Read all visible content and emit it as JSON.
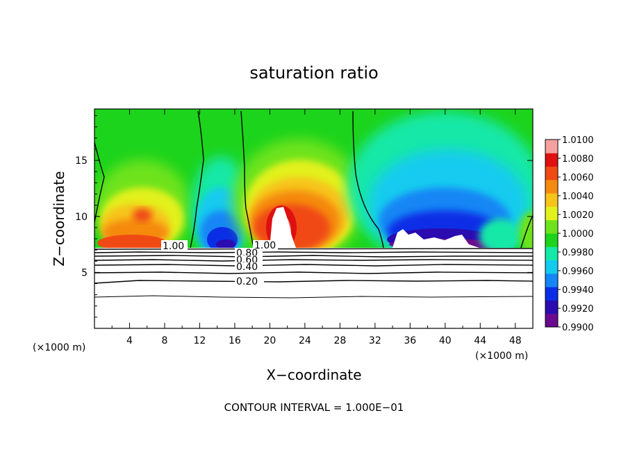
{
  "chart_data": {
    "type": "heatmap",
    "title": "saturation ratio",
    "xlabel": "X−coordinate",
    "ylabel": "Z−coordinate",
    "x_unit_left": "(×1000 m)",
    "x_unit_right": "(×1000 m)",
    "x_ticks": [
      "4",
      "8",
      "12",
      "16",
      "20",
      "24",
      "28",
      "32",
      "36",
      "40",
      "44",
      "48"
    ],
    "y_ticks": [
      "5",
      "10",
      "15"
    ],
    "xlim": [
      0,
      50
    ],
    "ylim": [
      0,
      19.6
    ],
    "colorbar": {
      "labels": [
        "1.0100",
        "1.0080",
        "1.0060",
        "1.0040",
        "1.0020",
        "1.0000",
        "0.9980",
        "0.9960",
        "0.9940",
        "0.9920",
        "0.9900"
      ],
      "range": [
        0.99,
        1.01
      ],
      "colors": [
        "#6a0a8e",
        "#2a0cb0",
        "#0a2ee6",
        "#1586f5",
        "#12cbef",
        "#15e8a8",
        "#1cd41c",
        "#6ee31c",
        "#e2f11c",
        "#f7c41a",
        "#f58a10",
        "#f04a14",
        "#de1010",
        "#f7a0a0"
      ]
    },
    "contour_labels": [
      "1.00",
      "1.00",
      "0.80",
      "0.60",
      "0.40",
      "0.20"
    ],
    "annotation": "CONTOUR INTERVAL = 1.000E−01",
    "cloud_base_z": 7.2,
    "regions": [
      {
        "kind": "moist_max",
        "x": 5,
        "z": 10.2,
        "value": 1.006
      },
      {
        "kind": "dry_min",
        "x": 15.5,
        "z": 9.0,
        "value": 0.991
      },
      {
        "kind": "moist_max",
        "x": 21.5,
        "z": 10.5,
        "value": 1.01
      },
      {
        "kind": "dry_min",
        "x": 39,
        "z": 9.5,
        "value": 0.991
      },
      {
        "kind": "dry_secondary",
        "x": 39,
        "z": 13,
        "value": 0.996
      }
    ]
  }
}
